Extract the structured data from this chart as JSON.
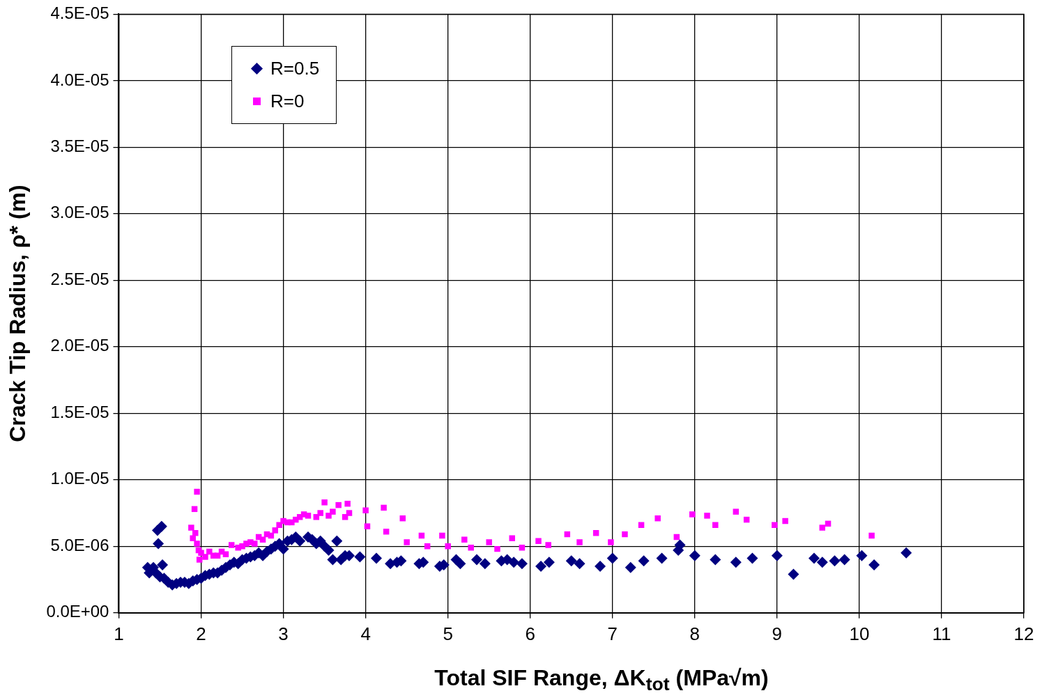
{
  "chart_data": {
    "type": "scatter",
    "xlabel": "Total SIF Range, ΔK$_{tot}$ (MPa√m)",
    "ylabel": "Crack Tip Radius, ρ* (m)",
    "xlim": [
      1,
      12
    ],
    "xticks": [
      1,
      2,
      3,
      4,
      5,
      6,
      7,
      8,
      9,
      10,
      11,
      12
    ],
    "ylim": [
      0,
      4.5e-05
    ],
    "yticks": [
      {
        "value": 0,
        "label": "0.0E+00"
      },
      {
        "value": 5e-06,
        "label": "5.0E-06"
      },
      {
        "value": 1e-05,
        "label": "1.0E-05"
      },
      {
        "value": 1.5e-05,
        "label": "1.5E-05"
      },
      {
        "value": 2e-05,
        "label": "2.0E-05"
      },
      {
        "value": 2.5e-05,
        "label": "2.5E-05"
      },
      {
        "value": 3e-05,
        "label": "3.0E-05"
      },
      {
        "value": 3.5e-05,
        "label": "3.5E-05"
      },
      {
        "value": 4e-05,
        "label": "4.0E-05"
      },
      {
        "value": 4.5e-05,
        "label": "4.5E-05"
      }
    ],
    "grid": true,
    "legend": "top left",
    "series": [
      {
        "name": "R=0.5",
        "color": "#000080",
        "marker": "diamond",
        "x": [
          1.35,
          1.37,
          1.42,
          1.45,
          1.47,
          1.48,
          1.52,
          1.53,
          1.5,
          1.55,
          1.6,
          1.65,
          1.7,
          1.75,
          1.8,
          1.85,
          1.9,
          1.95,
          2.0,
          2.05,
          2.1,
          2.15,
          2.2,
          2.25,
          2.3,
          2.35,
          2.4,
          2.45,
          2.5,
          2.55,
          2.6,
          2.65,
          2.7,
          2.75,
          2.8,
          2.85,
          2.9,
          2.95,
          3.0,
          3.05,
          3.1,
          3.15,
          3.2,
          3.3,
          3.35,
          3.4,
          3.45,
          3.5,
          3.55,
          3.6,
          3.65,
          3.7,
          3.75,
          3.8,
          3.93,
          4.13,
          4.3,
          4.38,
          4.43,
          4.65,
          4.7,
          4.9,
          4.95,
          5.1,
          5.15,
          5.35,
          5.45,
          5.65,
          5.72,
          5.8,
          5.9,
          6.13,
          6.23,
          6.5,
          6.6,
          6.85,
          7.0,
          7.22,
          7.38,
          7.6,
          7.8,
          7.82,
          8.0,
          8.25,
          8.5,
          8.7,
          9.0,
          9.2,
          9.45,
          9.55,
          9.7,
          9.82,
          10.03,
          10.18,
          10.57
        ],
        "values": [
          3.4e-06,
          3e-06,
          3.4e-06,
          3e-06,
          6.2e-06,
          5.2e-06,
          6.5e-06,
          3.6e-06,
          2.7e-06,
          2.6e-06,
          2.3e-06,
          2.1e-06,
          2.2e-06,
          2.3e-06,
          2.3e-06,
          2.2e-06,
          2.4e-06,
          2.5e-06,
          2.6e-06,
          2.8e-06,
          2.9e-06,
          3e-06,
          3e-06,
          3.2e-06,
          3.4e-06,
          3.6e-06,
          3.8e-06,
          3.7e-06,
          4e-06,
          4.1e-06,
          4.2e-06,
          4.3e-06,
          4.5e-06,
          4.3e-06,
          4.6e-06,
          4.8e-06,
          5e-06,
          5.2e-06,
          4.8e-06,
          5.4e-06,
          5.5e-06,
          5.7e-06,
          5.4e-06,
          5.7e-06,
          5.5e-06,
          5.2e-06,
          5.4e-06,
          5e-06,
          4.7e-06,
          4e-06,
          5.4e-06,
          4e-06,
          4.3e-06,
          4.3e-06,
          4.2e-06,
          4.1e-06,
          3.7e-06,
          3.8e-06,
          3.9e-06,
          3.7e-06,
          3.8e-06,
          3.5e-06,
          3.6e-06,
          4e-06,
          3.7e-06,
          4e-06,
          3.7e-06,
          3.9e-06,
          4e-06,
          3.8e-06,
          3.7e-06,
          3.5e-06,
          3.8e-06,
          3.9e-06,
          3.7e-06,
          3.5e-06,
          4.1e-06,
          3.4e-06,
          3.9e-06,
          4.1e-06,
          4.7e-06,
          5.1e-06,
          4.3e-06,
          4e-06,
          3.8e-06,
          4.1e-06,
          4.3e-06,
          2.9e-06,
          4.1e-06,
          3.8e-06,
          3.9e-06,
          4e-06,
          4.3e-06,
          3.6e-06,
          4.5e-06
        ]
      },
      {
        "name": "R=0",
        "color": "#ff00ff",
        "marker": "square",
        "x": [
          1.88,
          1.9,
          1.92,
          1.95,
          1.93,
          1.95,
          1.97,
          1.98,
          2.0,
          2.05,
          2.1,
          2.15,
          2.2,
          2.25,
          2.3,
          2.37,
          2.45,
          2.5,
          2.55,
          2.6,
          2.65,
          2.7,
          2.75,
          2.8,
          2.85,
          2.9,
          2.95,
          3.0,
          3.05,
          3.1,
          3.15,
          3.2,
          3.25,
          3.3,
          3.4,
          3.45,
          3.5,
          3.55,
          3.6,
          3.67,
          3.75,
          3.78,
          3.8,
          4.0,
          4.02,
          4.22,
          4.25,
          4.45,
          4.5,
          4.68,
          4.75,
          4.93,
          5.0,
          5.2,
          5.28,
          5.5,
          5.6,
          5.78,
          5.9,
          6.1,
          6.22,
          6.45,
          6.6,
          6.8,
          6.98,
          7.15,
          7.35,
          7.55,
          7.78,
          7.97,
          8.15,
          8.25,
          8.5,
          8.63,
          8.97,
          9.1,
          9.55,
          9.62,
          10.15
        ],
        "values": [
          6.4e-06,
          5.6e-06,
          7.8e-06,
          9.1e-06,
          6e-06,
          5.2e-06,
          4.7e-06,
          4e-06,
          4.5e-06,
          4.2e-06,
          4.6e-06,
          4.3e-06,
          4.3e-06,
          4.6e-06,
          4.4e-06,
          5.1e-06,
          4.9e-06,
          5e-06,
          5.2e-06,
          5.3e-06,
          5.2e-06,
          5.7e-06,
          5.5e-06,
          5.9e-06,
          5.8e-06,
          6.2e-06,
          6.6e-06,
          6.9e-06,
          6.8e-06,
          6.8e-06,
          7e-06,
          7.2e-06,
          7.4e-06,
          7.3e-06,
          7.2e-06,
          7.5e-06,
          8.3e-06,
          7.3e-06,
          7.6e-06,
          8.1e-06,
          7.2e-06,
          8.2e-06,
          7.5e-06,
          7.7e-06,
          6.5e-06,
          7.9e-06,
          6.1e-06,
          7.1e-06,
          5.3e-06,
          5.8e-06,
          5e-06,
          5.8e-06,
          5e-06,
          5.5e-06,
          4.9e-06,
          5.3e-06,
          4.8e-06,
          5.6e-06,
          4.9e-06,
          5.4e-06,
          5.1e-06,
          5.9e-06,
          5.3e-06,
          6e-06,
          5.3e-06,
          5.9e-06,
          6.6e-06,
          7.1e-06,
          5.7e-06,
          7.4e-06,
          7.3e-06,
          6.6e-06,
          7.6e-06,
          7e-06,
          6.6e-06,
          6.9e-06,
          6.4e-06,
          6.7e-06,
          5.8e-06
        ]
      }
    ]
  }
}
